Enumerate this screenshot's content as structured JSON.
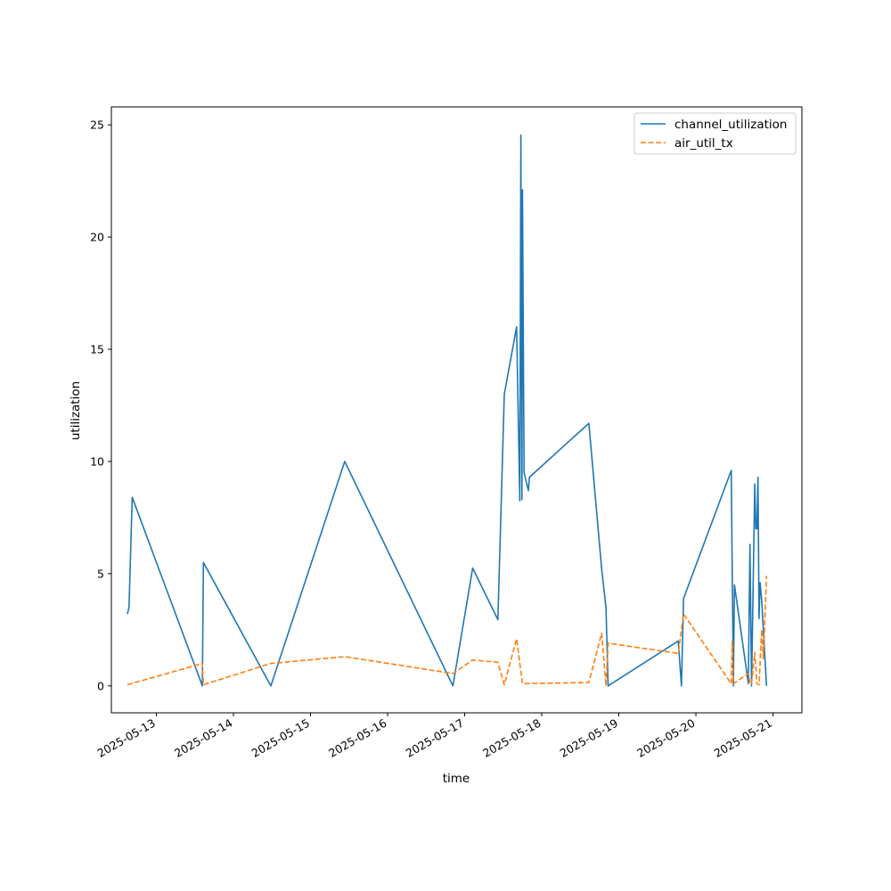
{
  "chart_data": {
    "type": "line",
    "xlabel": "time",
    "ylabel": "utilization",
    "xlim": [
      "2025-05-12 10:00",
      "2025-05-21 09:00"
    ],
    "ylim": [
      -1.2,
      25.8
    ],
    "x_ticks": [
      "2025-05-13",
      "2025-05-14",
      "2025-05-15",
      "2025-05-16",
      "2025-05-17",
      "2025-05-18",
      "2025-05-19",
      "2025-05-20",
      "2025-05-21"
    ],
    "y_ticks": [
      0,
      5,
      10,
      15,
      20,
      25
    ],
    "legend": {
      "position": "top-right",
      "entries": [
        "channel_utilization",
        "air_util_tx"
      ]
    },
    "grid": false,
    "series": [
      {
        "name": "channel_utilization",
        "color": "#1f77b4",
        "style": "solid",
        "points": [
          [
            "2025-05-12 15:00",
            3.2
          ],
          [
            "2025-05-12 15:30",
            3.5
          ],
          [
            "2025-05-12 16:30",
            8.4
          ],
          [
            "2025-05-13 14:20",
            0.0
          ],
          [
            "2025-05-13 14:40",
            5.5
          ],
          [
            "2025-05-14 11:40",
            0.0
          ],
          [
            "2025-05-15 10:40",
            10.0
          ],
          [
            "2025-05-16 20:20",
            0.0
          ],
          [
            "2025-05-17 02:30",
            5.25
          ],
          [
            "2025-05-17 10:20",
            2.95
          ],
          [
            "2025-05-17 12:20",
            13.0
          ],
          [
            "2025-05-17 16:10",
            16.0
          ],
          [
            "2025-05-17 17:10",
            8.25
          ],
          [
            "2025-05-17 17:30",
            24.55
          ],
          [
            "2025-05-17 17:50",
            8.3
          ],
          [
            "2025-05-17 18:00",
            22.1
          ],
          [
            "2025-05-17 18:30",
            9.5
          ],
          [
            "2025-05-17 19:50",
            8.7
          ],
          [
            "2025-05-17 20:10",
            9.3
          ],
          [
            "2025-05-18 14:40",
            11.7
          ],
          [
            "2025-05-18 18:40",
            5.2
          ],
          [
            "2025-05-18 20:00",
            3.5
          ],
          [
            "2025-05-18 20:40",
            0.0
          ],
          [
            "2025-05-19 18:30",
            2.0
          ],
          [
            "2025-05-19 19:30",
            0.0
          ],
          [
            "2025-05-19 20:10",
            3.9
          ],
          [
            "2025-05-20 11:00",
            9.6
          ],
          [
            "2025-05-20 11:40",
            0.0
          ],
          [
            "2025-05-20 12:00",
            4.5
          ],
          [
            "2025-05-20 16:20",
            0.1
          ],
          [
            "2025-05-20 16:50",
            6.3
          ],
          [
            "2025-05-20 17:20",
            0.0
          ],
          [
            "2025-05-20 18:20",
            9.0
          ],
          [
            "2025-05-20 18:40",
            7.0
          ],
          [
            "2025-05-20 19:00",
            7.0
          ],
          [
            "2025-05-20 19:20",
            9.3
          ],
          [
            "2025-05-20 19:40",
            3.0
          ],
          [
            "2025-05-20 20:00",
            4.6
          ],
          [
            "2025-05-20 20:30",
            3.8
          ],
          [
            "2025-05-20 22:00",
            0.0
          ]
        ]
      },
      {
        "name": "air_util_tx",
        "color": "#ff7f0e",
        "style": "dashed",
        "points": [
          [
            "2025-05-12 15:00",
            0.05
          ],
          [
            "2025-05-13 14:20",
            1.0
          ],
          [
            "2025-05-13 14:40",
            0.05
          ],
          [
            "2025-05-14 11:40",
            1.0
          ],
          [
            "2025-05-15 10:40",
            1.3
          ],
          [
            "2025-05-16 20:20",
            0.55
          ],
          [
            "2025-05-17 02:30",
            1.15
          ],
          [
            "2025-05-17 10:20",
            1.05
          ],
          [
            "2025-05-17 12:20",
            0.05
          ],
          [
            "2025-05-17 16:10",
            2.1
          ],
          [
            "2025-05-17 18:00",
            0.1
          ],
          [
            "2025-05-18 14:40",
            0.15
          ],
          [
            "2025-05-18 18:40",
            2.35
          ],
          [
            "2025-05-18 20:00",
            0.0
          ],
          [
            "2025-05-18 20:40",
            1.9
          ],
          [
            "2025-05-19 18:30",
            1.45
          ],
          [
            "2025-05-19 20:10",
            3.2
          ],
          [
            "2025-05-20 11:00",
            0.1
          ],
          [
            "2025-05-20 11:20",
            2.0
          ],
          [
            "2025-05-20 11:40",
            0.1
          ],
          [
            "2025-05-20 16:20",
            0.55
          ],
          [
            "2025-05-20 16:50",
            0.1
          ],
          [
            "2025-05-20 17:20",
            0.1
          ],
          [
            "2025-05-20 18:20",
            1.5
          ],
          [
            "2025-05-20 19:00",
            0.1
          ],
          [
            "2025-05-20 19:40",
            0.05
          ],
          [
            "2025-05-20 20:30",
            2.5
          ],
          [
            "2025-05-20 21:00",
            1.2
          ],
          [
            "2025-05-20 22:00",
            4.9
          ]
        ]
      }
    ]
  }
}
